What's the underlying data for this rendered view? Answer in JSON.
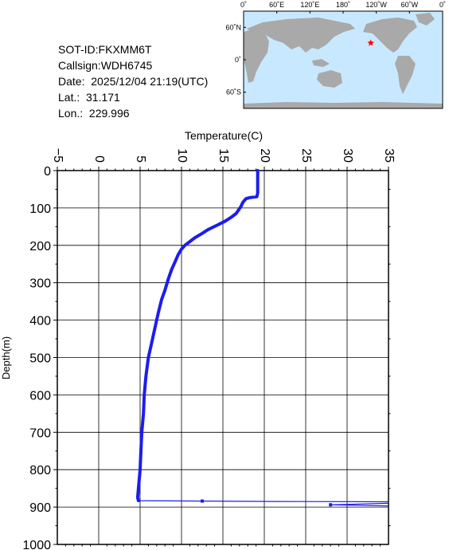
{
  "info": {
    "sot_id": "SOT-ID:FKXMM6T",
    "callsign": "Callsign:WDH6745",
    "date": "Date:  2025/12/04 21:19(UTC)",
    "lat": "Lat.:  31.171",
    "lon": "Lon.:  229.996"
  },
  "map": {
    "lon_labels": [
      "0˚",
      "60˚E",
      "120˚E",
      "180˚",
      "120˚W",
      "60˚W",
      "0˚"
    ],
    "lat_labels": [
      "60˚N",
      "0˚",
      "60˚S"
    ],
    "ocean_color": "#c8e8ff",
    "land_color": "#a9a9a9",
    "marker": {
      "lat": 31.171,
      "lon": 229.996,
      "color": "#ff0000",
      "symbol": "star"
    }
  },
  "chart_data": {
    "type": "line",
    "xlabel": "Temperature(C)",
    "ylabel": "Depth(m)",
    "xlim": [
      -5,
      35
    ],
    "ylim": [
      0,
      1000
    ],
    "y_inverted": true,
    "x_axis_position": "top",
    "grid": true,
    "x_ticks": [
      -5,
      0,
      5,
      10,
      15,
      20,
      25,
      30,
      35
    ],
    "y_ticks": [
      0,
      100,
      200,
      300,
      400,
      500,
      600,
      700,
      800,
      900,
      1000
    ],
    "line_color": "#1c1cf0",
    "series": [
      {
        "values": [
          [
            19.2,
            0
          ],
          [
            19.2,
            20
          ],
          [
            19.2,
            40
          ],
          [
            19.2,
            60
          ],
          [
            19.1,
            70
          ],
          [
            18.3,
            72
          ],
          [
            17.8,
            75
          ],
          [
            17.4,
            85
          ],
          [
            17.2,
            95
          ],
          [
            16.9,
            105
          ],
          [
            16.6,
            115
          ],
          [
            16.0,
            125
          ],
          [
            15.3,
            135
          ],
          [
            14.4,
            145
          ],
          [
            13.2,
            158
          ],
          [
            12.5,
            168
          ],
          [
            11.6,
            180
          ],
          [
            11.0,
            190
          ],
          [
            10.4,
            200
          ],
          [
            10.0,
            210
          ],
          [
            9.6,
            225
          ],
          [
            9.2,
            245
          ],
          [
            8.8,
            265
          ],
          [
            8.4,
            290
          ],
          [
            8.0,
            320
          ],
          [
            7.6,
            345
          ],
          [
            7.2,
            380
          ],
          [
            6.8,
            420
          ],
          [
            6.4,
            460
          ],
          [
            6.0,
            500
          ],
          [
            5.7,
            550
          ],
          [
            5.5,
            600
          ],
          [
            5.4,
            650
          ],
          [
            5.2,
            700
          ],
          [
            5.1,
            750
          ],
          [
            5.0,
            800
          ],
          [
            4.8,
            850
          ],
          [
            4.7,
            875
          ],
          [
            4.8,
            883
          ],
          [
            12.5,
            884
          ],
          [
            21.0,
            885
          ],
          [
            35.0,
            886
          ]
        ]
      },
      {
        "values": [
          [
            35.0,
            890
          ],
          [
            28.0,
            894
          ],
          [
            35.0,
            897
          ]
        ]
      }
    ],
    "points": [
      [
        12.5,
        884
      ],
      [
        28.0,
        894
      ]
    ]
  }
}
